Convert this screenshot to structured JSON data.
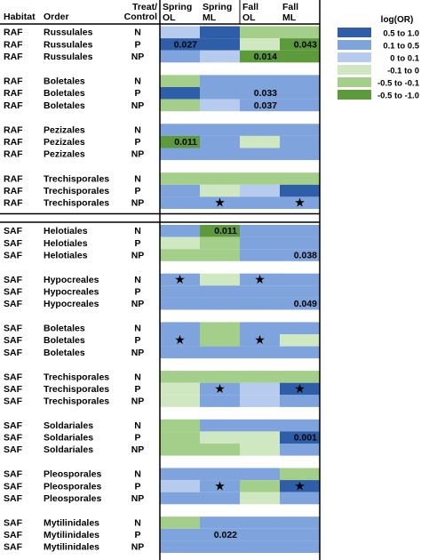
{
  "chart_data": {
    "type": "heatmap",
    "header": {
      "habitat": "Habitat",
      "order": "Order",
      "treat_line1": "Treat/",
      "treat_line2": "Control",
      "columns": [
        {
          "line1": "Spring",
          "line2": "OL"
        },
        {
          "line1": "Spring",
          "line2": "ML"
        },
        {
          "line1": "Fall",
          "line2": "OL"
        },
        {
          "line1": "Fall",
          "line2": "ML"
        }
      ]
    },
    "legend": {
      "title": "log(OR)",
      "entries": [
        {
          "label": "0.5 to 1.0",
          "color": "#2e5ea8"
        },
        {
          "label": "0.1 to 0.5",
          "color": "#7fa3dc"
        },
        {
          "label": "0 to 0.1",
          "color": "#b7cbee"
        },
        {
          "label": "-0.1 to 0",
          "color": "#cfe8c2"
        },
        {
          "label": "-0.5 to -0.1",
          "color": "#a3cf8a"
        },
        {
          "label": "-0.5 to -1.0",
          "color": "#5d9a3c"
        }
      ]
    },
    "star_glyph": "★",
    "groups": [
      {
        "habitat": "RAF",
        "order": "Russulales",
        "rows": [
          {
            "treat": "N",
            "cells": [
              [
                2,
                null
              ],
              [
                0,
                null
              ],
              [
                4,
                null
              ],
              [
                4,
                null
              ]
            ]
          },
          {
            "treat": "P",
            "cells": [
              [
                0,
                "0.027"
              ],
              [
                0,
                null
              ],
              [
                3,
                null
              ],
              [
                5,
                "0.043"
              ]
            ]
          },
          {
            "treat": "NP",
            "cells": [
              [
                1,
                null
              ],
              [
                2,
                null
              ],
              [
                5,
                "0.014"
              ],
              [
                5,
                null
              ]
            ]
          }
        ]
      },
      {
        "habitat": "RAF",
        "order": "Boletales",
        "rows": [
          {
            "treat": "N",
            "cells": [
              [
                4,
                null
              ],
              [
                1,
                null
              ],
              [
                1,
                null
              ],
              [
                1,
                null
              ]
            ]
          },
          {
            "treat": "P",
            "cells": [
              [
                0,
                null
              ],
              [
                1,
                null
              ],
              [
                1,
                "0.033"
              ],
              [
                1,
                null
              ]
            ]
          },
          {
            "treat": "NP",
            "cells": [
              [
                4,
                null
              ],
              [
                2,
                null
              ],
              [
                1,
                "0.037"
              ],
              [
                1,
                null
              ]
            ]
          }
        ]
      },
      {
        "habitat": "RAF",
        "order": "Pezizales",
        "rows": [
          {
            "treat": "N",
            "cells": [
              [
                1,
                null
              ],
              [
                1,
                null
              ],
              [
                1,
                null
              ],
              [
                1,
                null
              ]
            ]
          },
          {
            "treat": "P",
            "cells": [
              [
                5,
                "0.011"
              ],
              [
                1,
                null
              ],
              [
                3,
                null
              ],
              [
                1,
                null
              ]
            ]
          },
          {
            "treat": "NP",
            "cells": [
              [
                1,
                null
              ],
              [
                1,
                null
              ],
              [
                1,
                null
              ],
              [
                1,
                null
              ]
            ]
          }
        ]
      },
      {
        "habitat": "RAF",
        "order": "Trechisporales",
        "rows": [
          {
            "treat": "N",
            "cells": [
              [
                4,
                null
              ],
              [
                4,
                null
              ],
              [
                4,
                null
              ],
              [
                4,
                null
              ]
            ]
          },
          {
            "treat": "P",
            "cells": [
              [
                1,
                null
              ],
              [
                3,
                null
              ],
              [
                2,
                null
              ],
              [
                0,
                null
              ]
            ]
          },
          {
            "treat": "NP",
            "cells": [
              [
                1,
                null
              ],
              [
                1,
                "★"
              ],
              [
                1,
                null
              ],
              [
                1,
                "★"
              ]
            ]
          }
        ]
      },
      {
        "habitat": "SAF",
        "order": "Helotiales",
        "rows": [
          {
            "treat": "N",
            "cells": [
              [
                1,
                null
              ],
              [
                5,
                "0.011"
              ],
              [
                1,
                null
              ],
              [
                1,
                null
              ]
            ]
          },
          {
            "treat": "P",
            "cells": [
              [
                3,
                null
              ],
              [
                4,
                null
              ],
              [
                1,
                null
              ],
              [
                1,
                null
              ]
            ]
          },
          {
            "treat": "NP",
            "cells": [
              [
                4,
                null
              ],
              [
                4,
                null
              ],
              [
                1,
                null
              ],
              [
                1,
                "0.038"
              ]
            ]
          }
        ]
      },
      {
        "habitat": "SAF",
        "order": "Hypocreales",
        "rows": [
          {
            "treat": "N",
            "cells": [
              [
                1,
                "★"
              ],
              [
                3,
                null
              ],
              [
                1,
                "★"
              ],
              [
                1,
                null
              ]
            ]
          },
          {
            "treat": "P",
            "cells": [
              [
                1,
                null
              ],
              [
                1,
                null
              ],
              [
                1,
                null
              ],
              [
                1,
                null
              ]
            ]
          },
          {
            "treat": "NP",
            "cells": [
              [
                1,
                null
              ],
              [
                1,
                null
              ],
              [
                1,
                null
              ],
              [
                1,
                "0.049"
              ]
            ]
          }
        ]
      },
      {
        "habitat": "SAF",
        "order": "Boletales",
        "rows": [
          {
            "treat": "N",
            "cells": [
              [
                1,
                null
              ],
              [
                4,
                null
              ],
              [
                1,
                null
              ],
              [
                1,
                null
              ]
            ]
          },
          {
            "treat": "P",
            "cells": [
              [
                1,
                "★"
              ],
              [
                4,
                null
              ],
              [
                1,
                "★"
              ],
              [
                3,
                null
              ]
            ]
          },
          {
            "treat": "NP",
            "cells": [
              [
                1,
                null
              ],
              [
                1,
                null
              ],
              [
                1,
                null
              ],
              [
                1,
                null
              ]
            ]
          }
        ]
      },
      {
        "habitat": "SAF",
        "order": "Trechisporales",
        "rows": [
          {
            "treat": "N",
            "cells": [
              [
                4,
                null
              ],
              [
                4,
                null
              ],
              [
                4,
                null
              ],
              [
                4,
                null
              ]
            ]
          },
          {
            "treat": "P",
            "cells": [
              [
                3,
                null
              ],
              [
                1,
                "★"
              ],
              [
                2,
                null
              ],
              [
                0,
                "★"
              ]
            ]
          },
          {
            "treat": "NP",
            "cells": [
              [
                3,
                null
              ],
              [
                1,
                null
              ],
              [
                2,
                null
              ],
              [
                1,
                null
              ]
            ]
          }
        ]
      },
      {
        "habitat": "SAF",
        "order": "Soldariales",
        "rows": [
          {
            "treat": "N",
            "cells": [
              [
                4,
                null
              ],
              [
                1,
                null
              ],
              [
                1,
                null
              ],
              [
                1,
                null
              ]
            ]
          },
          {
            "treat": "P",
            "cells": [
              [
                4,
                null
              ],
              [
                3,
                null
              ],
              [
                3,
                null
              ],
              [
                0,
                "0.001"
              ]
            ]
          },
          {
            "treat": "NP",
            "cells": [
              [
                4,
                null
              ],
              [
                4,
                null
              ],
              [
                3,
                null
              ],
              [
                1,
                null
              ]
            ]
          }
        ]
      },
      {
        "habitat": "SAF",
        "order": "Pleosporales",
        "rows": [
          {
            "treat": "N",
            "cells": [
              [
                1,
                null
              ],
              [
                1,
                null
              ],
              [
                1,
                null
              ],
              [
                4,
                null
              ]
            ]
          },
          {
            "treat": "P",
            "cells": [
              [
                2,
                null
              ],
              [
                1,
                "★"
              ],
              [
                4,
                null
              ],
              [
                0,
                "★"
              ]
            ]
          },
          {
            "treat": "NP",
            "cells": [
              [
                1,
                null
              ],
              [
                1,
                null
              ],
              [
                3,
                null
              ],
              [
                1,
                null
              ]
            ]
          }
        ]
      },
      {
        "habitat": "SAF",
        "order": "Mytilinidales",
        "rows": [
          {
            "treat": "N",
            "cells": [
              [
                4,
                null
              ],
              [
                1,
                null
              ],
              [
                1,
                null
              ],
              [
                1,
                null
              ]
            ]
          },
          {
            "treat": "P",
            "cells": [
              [
                1,
                null
              ],
              [
                1,
                "0.022"
              ],
              [
                1,
                null
              ],
              [
                1,
                null
              ]
            ]
          },
          {
            "treat": "NP",
            "cells": [
              [
                1,
                null
              ],
              [
                1,
                null
              ],
              [
                1,
                null
              ],
              [
                1,
                null
              ]
            ]
          }
        ]
      }
    ]
  }
}
